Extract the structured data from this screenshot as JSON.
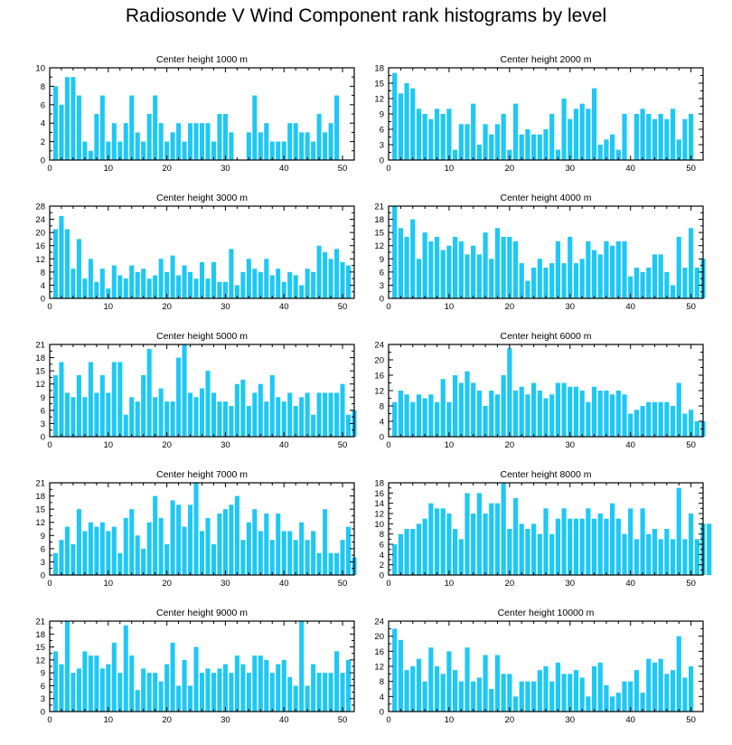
{
  "title": "Radiosonde V Wind Component rank histograms by level",
  "colors": {
    "bar": "#1ec8f5",
    "axis": "#000000"
  },
  "chart_data": [
    {
      "type": "bar",
      "title": "Center height 1000 m",
      "xlim": [
        0,
        52
      ],
      "ylim": [
        0,
        10
      ],
      "yticks": [
        0,
        2,
        4,
        6,
        8,
        10
      ],
      "xticks": [
        0,
        10,
        20,
        30,
        40,
        50
      ],
      "values": [
        8,
        6,
        9,
        9,
        7,
        2,
        1,
        5,
        7,
        2,
        4,
        2,
        4,
        7,
        3,
        2,
        5,
        7,
        4,
        2,
        3,
        4,
        2,
        4,
        4,
        4,
        4,
        2,
        5,
        5,
        3,
        0,
        0,
        3,
        7,
        3,
        4,
        2,
        2,
        2,
        4,
        4,
        3,
        3,
        2,
        5,
        3,
        4,
        7
      ]
    },
    {
      "type": "bar",
      "title": "Center height 2000 m",
      "xlim": [
        0,
        52
      ],
      "ylim": [
        0,
        18
      ],
      "yticks": [
        0,
        3,
        6,
        9,
        12,
        15,
        18
      ],
      "xticks": [
        0,
        10,
        20,
        30,
        40,
        50
      ],
      "values": [
        17,
        13,
        15,
        14,
        10,
        9,
        8,
        10,
        9,
        10,
        2,
        7,
        7,
        11,
        3,
        7,
        5,
        7,
        9,
        2,
        11,
        5,
        6,
        5,
        5,
        6,
        9,
        2,
        12,
        8,
        10,
        11,
        10,
        14,
        3,
        4,
        5,
        2,
        9,
        0,
        9,
        10,
        9,
        8,
        9,
        8,
        10,
        4,
        8,
        9
      ]
    },
    {
      "type": "bar",
      "title": "Center height 3000 m",
      "xlim": [
        0,
        52
      ],
      "ylim": [
        0,
        28
      ],
      "yticks": [
        0,
        4,
        8,
        12,
        16,
        20,
        24,
        28
      ],
      "xticks": [
        0,
        10,
        20,
        30,
        40,
        50
      ],
      "values": [
        21,
        25,
        21,
        9,
        18,
        6,
        12,
        5,
        9,
        3,
        10,
        7,
        6,
        10,
        8,
        9,
        6,
        7,
        12,
        8,
        13,
        7,
        10,
        8,
        6,
        11,
        6,
        11,
        5,
        5,
        15,
        4,
        8,
        12,
        9,
        8,
        12,
        7,
        9,
        5,
        8,
        7,
        4,
        9,
        8,
        16,
        14,
        12,
        15,
        11,
        10
      ]
    },
    {
      "type": "bar",
      "title": "Center height 4000 m",
      "xlim": [
        0,
        52
      ],
      "ylim": [
        0,
        21
      ],
      "yticks": [
        0,
        3,
        6,
        9,
        12,
        15,
        18,
        21
      ],
      "xticks": [
        0,
        10,
        20,
        30,
        40,
        50
      ],
      "values": [
        21,
        16,
        14,
        18,
        9,
        15,
        13,
        14,
        11,
        12,
        14,
        13,
        10,
        12,
        10,
        15,
        9,
        16,
        14,
        14,
        13,
        8,
        4,
        7,
        9,
        7,
        8,
        13,
        8,
        14,
        8,
        9,
        13,
        11,
        10,
        13,
        12,
        13,
        13,
        5,
        7,
        6,
        7,
        10,
        10,
        6,
        3,
        14,
        7,
        16,
        7,
        9
      ]
    },
    {
      "type": "bar",
      "title": "Center height 5000 m",
      "xlim": [
        0,
        52
      ],
      "ylim": [
        0,
        21
      ],
      "yticks": [
        0,
        3,
        6,
        9,
        12,
        15,
        18,
        21
      ],
      "xticks": [
        0,
        10,
        20,
        30,
        40,
        50
      ],
      "values": [
        14,
        17,
        10,
        9,
        14,
        9,
        17,
        10,
        14,
        10,
        17,
        17,
        5,
        9,
        8,
        14,
        20,
        9,
        11,
        8,
        8,
        18,
        21,
        10,
        9,
        11,
        15,
        10,
        8,
        8,
        7,
        12,
        13,
        7,
        10,
        12,
        8,
        14,
        9,
        8,
        10,
        7,
        9,
        10,
        5,
        10,
        10,
        10,
        10,
        12,
        5,
        6
      ]
    },
    {
      "type": "bar",
      "title": "Center height 6000 m",
      "xlim": [
        0,
        52
      ],
      "ylim": [
        0,
        24
      ],
      "yticks": [
        0,
        4,
        8,
        12,
        16,
        20,
        24
      ],
      "xticks": [
        0,
        10,
        20,
        30,
        40,
        50
      ],
      "values": [
        9,
        12,
        11,
        9,
        11,
        10,
        11,
        9,
        15,
        9,
        16,
        14,
        17,
        14,
        12,
        8,
        12,
        11,
        16,
        23,
        12,
        13,
        11,
        14,
        12,
        10,
        11,
        14,
        14,
        13,
        13,
        12,
        9,
        13,
        12,
        12,
        11,
        12,
        11,
        6,
        7,
        8,
        9,
        9,
        9,
        9,
        8,
        14,
        6,
        7,
        4,
        4
      ]
    },
    {
      "type": "bar",
      "title": "Center height 7000 m",
      "xlim": [
        0,
        52
      ],
      "ylim": [
        0,
        21
      ],
      "yticks": [
        0,
        3,
        6,
        9,
        12,
        15,
        18,
        21
      ],
      "xticks": [
        0,
        10,
        20,
        30,
        40,
        50
      ],
      "values": [
        5,
        8,
        11,
        7,
        15,
        10,
        12,
        11,
        12,
        10,
        11,
        5,
        13,
        15,
        9,
        6,
        12,
        18,
        13,
        7,
        17,
        16,
        11,
        16,
        21,
        10,
        13,
        7,
        14,
        15,
        16,
        18,
        8,
        12,
        15,
        10,
        14,
        8,
        14,
        10,
        10,
        8,
        12,
        8,
        10,
        5,
        15,
        5,
        5,
        8,
        11,
        4
      ]
    },
    {
      "type": "bar",
      "title": "Center height 8000 m",
      "xlim": [
        0,
        52
      ],
      "ylim": [
        0,
        18
      ],
      "yticks": [
        0,
        2,
        4,
        6,
        8,
        10,
        12,
        14,
        16,
        18
      ],
      "xticks": [
        0,
        10,
        20,
        30,
        40,
        50
      ],
      "values": [
        6,
        8,
        9,
        9,
        10,
        11,
        14,
        13,
        13,
        12,
        9,
        7,
        16,
        12,
        16,
        12,
        14,
        14,
        18,
        9,
        15,
        10,
        9,
        10,
        8,
        13,
        8,
        11,
        13,
        11,
        11,
        11,
        13,
        11,
        12,
        11,
        14,
        11,
        8,
        13,
        7,
        13,
        8,
        9,
        7,
        9,
        7,
        17,
        7,
        12,
        7,
        10,
        10
      ]
    },
    {
      "type": "bar",
      "title": "Center height 9000 m",
      "xlim": [
        0,
        52
      ],
      "ylim": [
        0,
        21
      ],
      "yticks": [
        0,
        3,
        6,
        9,
        12,
        15,
        18,
        21
      ],
      "xticks": [
        0,
        10,
        20,
        30,
        40,
        50
      ],
      "values": [
        14,
        11,
        21,
        9,
        10,
        14,
        13,
        13,
        10,
        11,
        16,
        9,
        20,
        13,
        5,
        10,
        9,
        9,
        7,
        11,
        16,
        6,
        12,
        6,
        15,
        9,
        10,
        9,
        10,
        11,
        9,
        13,
        11,
        9,
        13,
        13,
        12,
        9,
        11,
        12,
        8,
        6,
        21,
        6,
        11,
        9,
        9,
        9,
        14,
        9,
        12
      ]
    },
    {
      "type": "bar",
      "title": "Center height 10000 m",
      "xlim": [
        0,
        52
      ],
      "ylim": [
        0,
        24
      ],
      "yticks": [
        0,
        4,
        8,
        12,
        16,
        20,
        24
      ],
      "xticks": [
        0,
        10,
        20,
        30,
        40,
        50
      ],
      "values": [
        22,
        19,
        11,
        12,
        14,
        8,
        17,
        12,
        10,
        16,
        11,
        8,
        17,
        8,
        9,
        15,
        6,
        15,
        10,
        10,
        4,
        8,
        8,
        8,
        11,
        12,
        8,
        13,
        10,
        10,
        11,
        9,
        4,
        12,
        13,
        7,
        4,
        5,
        8,
        8,
        11,
        5,
        14,
        13,
        14,
        10,
        11,
        20,
        9,
        12
      ]
    }
  ]
}
